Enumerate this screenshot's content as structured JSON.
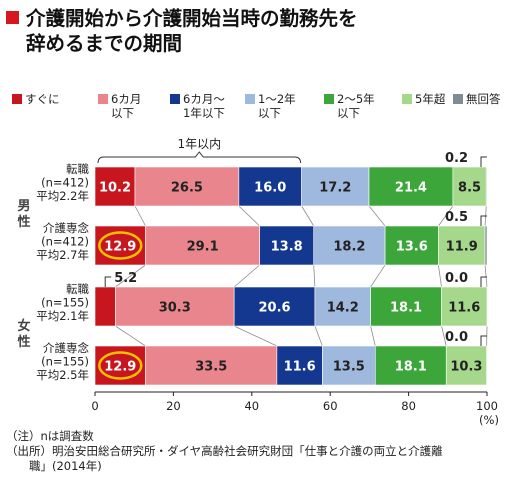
{
  "title": "介護開始から介護開始当時の勤務先を\n辞めるまでの期間",
  "colors": {
    "title_marker": "#d7171f",
    "highlight_circle": "#f2c200",
    "background": "#ffffff"
  },
  "legend": [
    {
      "label": "すぐに",
      "color": "#c8161e"
    },
    {
      "label": "6カ月\n以下",
      "color": "#e9858d"
    },
    {
      "label": "6カ月〜\n1年以下",
      "color": "#14388f"
    },
    {
      "label": "1〜2年\n以下",
      "color": "#9fb8dd"
    },
    {
      "label": "2〜5年\n以下",
      "color": "#3ca63a"
    },
    {
      "label": "5年超",
      "color": "#a5d88b"
    },
    {
      "label": "無回答",
      "color": "#7f8c94"
    }
  ],
  "bracket_label": "1年以内",
  "chart_data": {
    "type": "bar",
    "orientation": "horizontal",
    "stacked": true,
    "xlim": [
      0,
      100
    ],
    "x_ticks": [
      "0",
      "20",
      "40",
      "60",
      "80",
      "100"
    ],
    "x_unit": "(%)",
    "groups": [
      {
        "label": "男\n性",
        "rows": [
          0,
          1
        ]
      },
      {
        "label": "女\n性",
        "rows": [
          2,
          3
        ]
      }
    ],
    "categories": [
      "転職\n(n=412)\n平均2.2年",
      "介護専念\n(n=412)\n平均2.7年",
      "転職\n(n=155)\n平均2.1年",
      "介護専念\n(n=155)\n平均2.5年"
    ],
    "series": [
      {
        "name": "すぐに",
        "values": [
          10.2,
          12.9,
          5.2,
          12.9
        ]
      },
      {
        "name": "6カ月以下",
        "values": [
          26.5,
          29.1,
          30.3,
          33.5
        ]
      },
      {
        "name": "6カ月〜1年以下",
        "values": [
          16.0,
          13.8,
          20.6,
          11.6
        ]
      },
      {
        "name": "1〜2年以下",
        "values": [
          17.2,
          18.2,
          14.2,
          13.5
        ]
      },
      {
        "name": "2〜5年以下",
        "values": [
          21.4,
          13.6,
          18.1,
          18.1
        ]
      },
      {
        "name": "5年超",
        "values": [
          8.5,
          11.9,
          11.6,
          10.3
        ]
      },
      {
        "name": "無回答",
        "values": [
          0.2,
          0.5,
          0.0,
          0.0
        ]
      }
    ],
    "data_labels": [
      [
        "10.2",
        "26.5",
        "16.0",
        "17.2",
        "21.4",
        "8.5",
        "0.2"
      ],
      [
        "12.9",
        "29.1",
        "13.8",
        "18.2",
        "13.6",
        "11.9",
        "0.5"
      ],
      [
        "5.2",
        "30.3",
        "20.6",
        "14.2",
        "18.1",
        "11.6",
        "0.0"
      ],
      [
        "12.9",
        "33.5",
        "11.6",
        "13.5",
        "18.1",
        "10.3",
        "0.0"
      ]
    ],
    "highlighted": [
      [
        1,
        0
      ],
      [
        3,
        0
      ]
    ],
    "grid": false
  },
  "notes": [
    "（注）nは調査数",
    "（出所）明治安田総合研究所・ダイヤ高齢社会研究財団「仕事と介護の両立と介護離\n　　職」(2014年)"
  ]
}
